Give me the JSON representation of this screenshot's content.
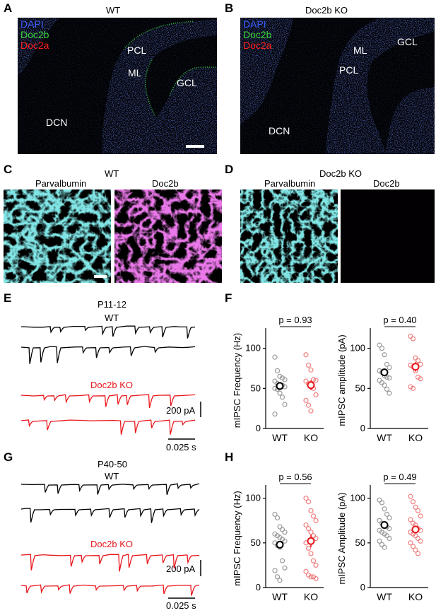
{
  "panels": {
    "A": {
      "letter": "A",
      "title": "WT",
      "legend": [
        "DAPI",
        "Doc2b",
        "Doc2a"
      ],
      "regions": {
        "pcl": "PCL",
        "ml": "ML",
        "gcl": "GCL",
        "dcn": "DCN"
      }
    },
    "B": {
      "letter": "B",
      "title": "Doc2b KO",
      "legend": [
        "DAPI",
        "Doc2b",
        "Doc2a"
      ],
      "regions": {
        "ml": "ML",
        "gcl": "GCL",
        "pcl": "PCL",
        "dcn": "DCN"
      }
    },
    "C": {
      "letter": "C",
      "title": "WT",
      "left": "Parvalbumin",
      "right": "Doc2b"
    },
    "D": {
      "letter": "D",
      "title": "Doc2b KO",
      "left": "Parvalbumin",
      "right": "Doc2b"
    },
    "E": {
      "letter": "E",
      "age": "P11-12",
      "wt": "WT",
      "ko": "Doc2b KO",
      "scale_y": "200 pA",
      "scale_x": "0.025 s"
    },
    "F": {
      "letter": "F"
    },
    "G": {
      "letter": "G",
      "age": "P40-50",
      "wt": "WT",
      "ko": "Doc2b KO",
      "scale_y": "200 pA",
      "scale_x": "0.025 s"
    },
    "H": {
      "letter": "H"
    }
  },
  "colors": {
    "dapi": "#3b5bff",
    "doc2b": "#39d63a",
    "doc2a": "#ff2020",
    "cyan": "#37c8c8",
    "magenta": "#d030d0",
    "wt_points": "#9a9a9a",
    "ko_points": "#f08080",
    "ko_trace": "#e8161b"
  },
  "chart_data": [
    {
      "id": "F-left",
      "type": "scatter",
      "categories": [
        "WT",
        "KO"
      ],
      "ylabel": "mIPSC Frequency (Hz)",
      "ylim": [
        0,
        120
      ],
      "yticks": [
        0,
        50,
        100
      ],
      "pvalue": "p = 0.93",
      "series": [
        {
          "name": "WT",
          "values": [
            89,
            72,
            65,
            63,
            61,
            59,
            56,
            55,
            54,
            52,
            50,
            49,
            44,
            39,
            30,
            18
          ],
          "mean": 53,
          "sem": 4
        },
        {
          "name": "KO",
          "values": [
            92,
            79,
            73,
            61,
            60,
            59,
            56,
            54,
            50,
            42,
            35,
            29,
            22
          ],
          "mean": 54,
          "sem": 6
        }
      ]
    },
    {
      "id": "F-right",
      "type": "scatter",
      "categories": [
        "WT",
        "KO"
      ],
      "ylabel": "mIPSC amplitude (pA)",
      "ylim": [
        0,
        120
      ],
      "yticks": [
        0,
        50,
        100
      ],
      "pvalue": "p = 0.40",
      "series": [
        {
          "name": "WT",
          "values": [
            104,
            100,
            92,
            80,
            76,
            72,
            70,
            66,
            64,
            63,
            60,
            57,
            54,
            49,
            44
          ],
          "mean": 70,
          "sem": 4
        },
        {
          "name": "KO",
          "values": [
            115,
            112,
            88,
            85,
            80,
            79,
            77,
            72,
            64,
            62,
            52,
            50
          ],
          "mean": 77,
          "sem": 6
        }
      ]
    },
    {
      "id": "H-left",
      "type": "scatter",
      "categories": [
        "WT",
        "KO"
      ],
      "ylabel": "mIPSC Frequency (Hz)",
      "ylim": [
        0,
        110
      ],
      "yticks": [
        0,
        50,
        100
      ],
      "pvalue": "p = 0.56",
      "series": [
        {
          "name": "WT",
          "values": [
            82,
            78,
            68,
            65,
            62,
            60,
            58,
            56,
            54,
            52,
            50,
            47,
            45,
            30,
            22,
            19,
            12,
            8
          ],
          "mean": 48,
          "sem": 4
        },
        {
          "name": "KO",
          "values": [
            100,
            96,
            86,
            80,
            75,
            70,
            66,
            62,
            58,
            55,
            50,
            44,
            38,
            30,
            25,
            18,
            14,
            12,
            12,
            10
          ],
          "mean": 52,
          "sem": 7
        }
      ]
    },
    {
      "id": "H-right",
      "type": "scatter",
      "categories": [
        "WT",
        "KO"
      ],
      "ylabel": "mIPSC Amplitude (pA)",
      "ylim": [
        0,
        110
      ],
      "yticks": [
        0,
        50,
        100
      ],
      "pvalue": "p = 0.49",
      "series": [
        {
          "name": "WT",
          "values": [
            98,
            95,
            88,
            82,
            78,
            75,
            72,
            70,
            68,
            66,
            64,
            62,
            60,
            58,
            55,
            52,
            48,
            45
          ],
          "mean": 70,
          "sem": 4
        },
        {
          "name": "KO",
          "values": [
            102,
            96,
            90,
            86,
            80,
            76,
            72,
            70,
            66,
            64,
            62,
            60,
            58,
            55,
            52,
            50,
            46,
            42,
            38
          ],
          "mean": 65,
          "sem": 4
        }
      ]
    }
  ]
}
